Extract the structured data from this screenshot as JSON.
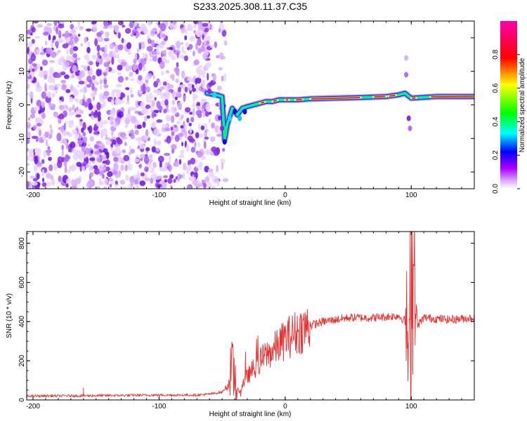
{
  "title": "S233.2025.308.11.37.C35",
  "chart_data": [
    {
      "type": "heatmap",
      "name": "spectrogram",
      "xlabel": "Height of straight line (km)",
      "ylabel": "Frequency (Hz)",
      "xlim": [
        -205,
        150
      ],
      "ylim": [
        -25,
        25
      ],
      "xticks": [
        -200,
        -100,
        0,
        100
      ],
      "yticks": [
        -20,
        -10,
        0,
        10,
        20
      ],
      "noise_region_x": [
        -205,
        -55
      ],
      "signal_track": [
        {
          "x": -62,
          "y": 3.5
        },
        {
          "x": -55,
          "y": 3.0
        },
        {
          "x": -50,
          "y": 2.5
        },
        {
          "x": -48,
          "y": -10.5
        },
        {
          "x": -46,
          "y": -6
        },
        {
          "x": -42,
          "y": -1
        },
        {
          "x": -38,
          "y": -3
        },
        {
          "x": -34,
          "y": -1
        },
        {
          "x": -30,
          "y": -0.5
        },
        {
          "x": -25,
          "y": 0
        },
        {
          "x": -20,
          "y": 0.5
        },
        {
          "x": -15,
          "y": 1
        },
        {
          "x": -10,
          "y": 1
        },
        {
          "x": -5,
          "y": 1.5
        },
        {
          "x": 0,
          "y": 1.5
        },
        {
          "x": 10,
          "y": 1.5
        },
        {
          "x": 20,
          "y": 1.8
        },
        {
          "x": 40,
          "y": 2
        },
        {
          "x": 60,
          "y": 2.2
        },
        {
          "x": 80,
          "y": 2.5
        },
        {
          "x": 90,
          "y": 3
        },
        {
          "x": 95,
          "y": 3.5
        },
        {
          "x": 100,
          "y": 2
        },
        {
          "x": 120,
          "y": 2.5
        },
        {
          "x": 150,
          "y": 2.5
        }
      ],
      "colorbar": {
        "label": "Normalized spectral amplitude",
        "ticks": [
          "0.0",
          "0.2",
          "0.4",
          "0.6",
          "0.8"
        ],
        "range": [
          0,
          1
        ],
        "colors": [
          "#ffffff",
          "#b000ff",
          "#0000ff",
          "#00ffff",
          "#00ff00",
          "#ffff00",
          "#ff0000",
          "#ff00aa"
        ]
      }
    },
    {
      "type": "line",
      "name": "snr",
      "xlabel": "Height of straight line (km)",
      "ylabel": "SNR (10 * v/v)",
      "xlim": [
        -205,
        150
      ],
      "ylim": [
        0,
        860
      ],
      "xticks": [
        -200,
        -100,
        0,
        100
      ],
      "yticks": [
        0,
        200,
        400,
        600,
        800
      ],
      "color": "#e83030",
      "series": [
        {
          "name": "SNR",
          "x": [
            -205,
            -150,
            -100,
            -70,
            -60,
            -50,
            -45,
            -42,
            -40,
            -38,
            -36,
            -34,
            -30,
            -25,
            -20,
            -15,
            -10,
            -5,
            0,
            10,
            20,
            30,
            50,
            70,
            90,
            96,
            98,
            100,
            102,
            105,
            110,
            130,
            150
          ],
          "y": [
            20,
            22,
            25,
            25,
            30,
            40,
            80,
            150,
            120,
            60,
            40,
            80,
            120,
            160,
            200,
            230,
            250,
            280,
            310,
            350,
            380,
            400,
            420,
            420,
            430,
            400,
            180,
            30,
            700,
            380,
            420,
            410,
            420
          ]
        }
      ]
    }
  ]
}
